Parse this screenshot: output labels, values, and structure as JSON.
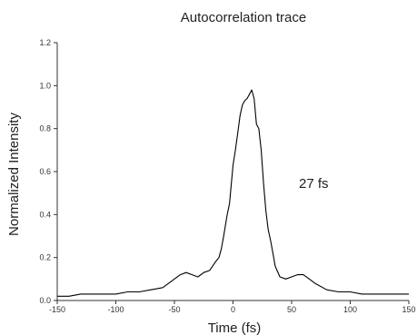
{
  "chart_data": {
    "type": "line",
    "title": "Autocorrelation trace",
    "xlabel": "Time (fs)",
    "ylabel": "Normalized Intensity",
    "xlim": [
      -150,
      150
    ],
    "ylim": [
      0.0,
      1.2
    ],
    "xticks": [
      -150,
      -100,
      -50,
      0,
      50,
      100,
      150
    ],
    "xtick_labels": [
      "-150",
      "-100",
      "-50",
      "0",
      "50",
      "100",
      "150"
    ],
    "yticks": [
      0.0,
      0.2,
      0.4,
      0.6,
      0.8,
      1.0,
      1.2
    ],
    "ytick_labels": [
      "0.0",
      "0.2",
      "0.4",
      "0.6",
      "0.8",
      "1.0",
      "1.2"
    ],
    "grid": false,
    "line_color": "#000000",
    "annotation": "27 fs",
    "series": [
      {
        "x": [
          -150,
          -140,
          -130,
          -120,
          -110,
          -100,
          -90,
          -80,
          -70,
          -60,
          -55,
          -50,
          -45,
          -40,
          -35,
          -30,
          -25,
          -20,
          -15,
          -12,
          -10,
          -8,
          -5,
          -3,
          0,
          2,
          4,
          6,
          8,
          10,
          12,
          14,
          16,
          18,
          20,
          22,
          24,
          26,
          28,
          30,
          32,
          34,
          36,
          40,
          45,
          50,
          55,
          60,
          65,
          70,
          80,
          90,
          100,
          110,
          120,
          130,
          140,
          150
        ],
        "y": [
          0.02,
          0.02,
          0.03,
          0.03,
          0.03,
          0.03,
          0.04,
          0.04,
          0.05,
          0.06,
          0.08,
          0.1,
          0.12,
          0.13,
          0.12,
          0.11,
          0.13,
          0.14,
          0.18,
          0.2,
          0.24,
          0.3,
          0.4,
          0.45,
          0.63,
          0.7,
          0.78,
          0.86,
          0.91,
          0.93,
          0.94,
          0.96,
          0.98,
          0.94,
          0.82,
          0.8,
          0.7,
          0.55,
          0.42,
          0.33,
          0.28,
          0.22,
          0.16,
          0.11,
          0.1,
          0.11,
          0.12,
          0.12,
          0.1,
          0.08,
          0.05,
          0.04,
          0.04,
          0.03,
          0.03,
          0.03,
          0.03,
          0.03
        ]
      }
    ]
  }
}
